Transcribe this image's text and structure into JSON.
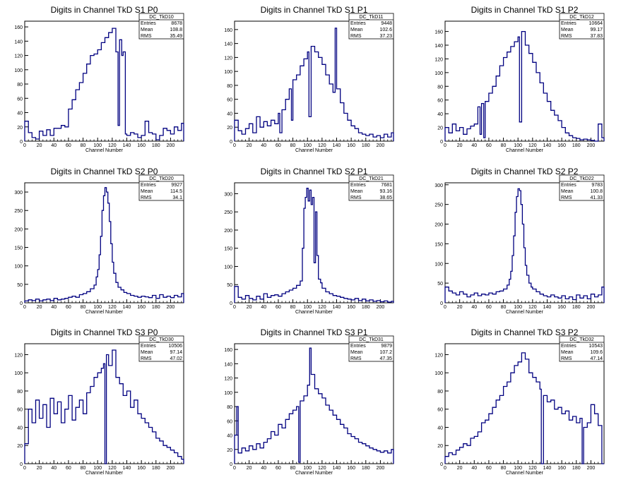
{
  "colors": {
    "line": "#000080",
    "frame": "#000000",
    "text": "#000000"
  },
  "chart_data": [
    {
      "type": "histogram",
      "title": "Digits in Channel TkD S1 P0",
      "xlabel": "Channel Number",
      "ylabel": "",
      "xlim": [
        0,
        218
      ],
      "ylim": [
        0,
        168
      ],
      "yticks": [
        0,
        20,
        40,
        60,
        80,
        100,
        120,
        140,
        160
      ],
      "xticks": [
        0,
        20,
        40,
        60,
        80,
        100,
        120,
        140,
        160,
        180,
        200
      ],
      "stats": {
        "name": "DC_TkD10",
        "entries": "8678",
        "mean": "108.8",
        "rms": "35.49"
      },
      "x": [
        0,
        5,
        10,
        15,
        20,
        25,
        30,
        35,
        40,
        45,
        50,
        55,
        60,
        65,
        70,
        75,
        80,
        85,
        90,
        95,
        100,
        105,
        110,
        115,
        120,
        125,
        128,
        130,
        133,
        135,
        138,
        140,
        145,
        150,
        155,
        160,
        165,
        170,
        175,
        180,
        185,
        190,
        195,
        200,
        205,
        210,
        215
      ],
      "values": [
        28,
        12,
        5,
        3,
        14,
        8,
        16,
        8,
        18,
        18,
        22,
        20,
        45,
        58,
        72,
        82,
        95,
        108,
        120,
        122,
        128,
        138,
        145,
        152,
        158,
        125,
        22,
        142,
        120,
        125,
        10,
        8,
        12,
        10,
        5,
        8,
        28,
        12,
        10,
        2,
        8,
        18,
        15,
        10,
        20,
        15,
        25
      ]
    },
    {
      "type": "histogram",
      "title": "Digits in Channel TkD S1 P1",
      "xlabel": "Channel Number",
      "ylabel": "",
      "xlim": [
        0,
        218
      ],
      "ylim": [
        0,
        172
      ],
      "yticks": [
        0,
        20,
        40,
        60,
        80,
        100,
        120,
        140,
        160
      ],
      "xticks": [
        0,
        20,
        40,
        60,
        80,
        100,
        120,
        140,
        160,
        180,
        200
      ],
      "stats": {
        "name": "DC_TkD11",
        "entries": "9448",
        "mean": "102.6",
        "rms": "37.23"
      },
      "x": [
        0,
        5,
        10,
        15,
        20,
        25,
        30,
        35,
        40,
        45,
        50,
        55,
        60,
        62,
        65,
        70,
        75,
        78,
        80,
        85,
        90,
        95,
        100,
        102,
        105,
        110,
        115,
        120,
        125,
        130,
        135,
        138,
        140,
        145,
        150,
        155,
        160,
        165,
        170,
        175,
        180,
        185,
        190,
        195,
        200,
        205,
        210,
        215
      ],
      "values": [
        30,
        15,
        10,
        18,
        25,
        12,
        35,
        20,
        28,
        22,
        30,
        25,
        40,
        12,
        45,
        60,
        75,
        30,
        88,
        95,
        108,
        118,
        128,
        35,
        136,
        128,
        120,
        110,
        95,
        82,
        70,
        162,
        75,
        55,
        40,
        30,
        22,
        18,
        12,
        10,
        8,
        10,
        6,
        8,
        5,
        10,
        6,
        12
      ]
    },
    {
      "type": "histogram",
      "title": "Digits in Channel TkD S1 P2",
      "xlabel": "Channel Number",
      "ylabel": "",
      "xlim": [
        0,
        218
      ],
      "ylim": [
        0,
        175
      ],
      "yticks": [
        0,
        20,
        40,
        60,
        80,
        100,
        120,
        140,
        160
      ],
      "xticks": [
        0,
        20,
        40,
        60,
        80,
        100,
        120,
        140,
        160,
        180,
        200
      ],
      "stats": {
        "name": "DC_TkD12",
        "entries": "10664",
        "mean": "99.17",
        "rms": "37.83"
      },
      "x": [
        0,
        5,
        10,
        15,
        20,
        25,
        30,
        35,
        40,
        45,
        48,
        50,
        53,
        55,
        60,
        65,
        70,
        75,
        80,
        85,
        90,
        95,
        100,
        102,
        105,
        110,
        115,
        120,
        125,
        130,
        135,
        140,
        145,
        150,
        155,
        160,
        165,
        170,
        175,
        180,
        185,
        190,
        195,
        200,
        205,
        210,
        215
      ],
      "values": [
        20,
        12,
        25,
        15,
        20,
        10,
        18,
        22,
        25,
        50,
        10,
        55,
        5,
        58,
        70,
        80,
        95,
        110,
        122,
        130,
        138,
        145,
        152,
        28,
        160,
        140,
        128,
        115,
        100,
        85,
        70,
        58,
        45,
        38,
        30,
        20,
        12,
        8,
        5,
        4,
        2,
        3,
        2,
        1,
        0,
        25,
        5
      ]
    },
    {
      "type": "histogram",
      "title": "Digits in Channel TkD S2 P0",
      "xlabel": "Channel Number",
      "ylabel": "",
      "xlim": [
        0,
        218
      ],
      "ylim": [
        0,
        325
      ],
      "yticks": [
        0,
        50,
        100,
        150,
        200,
        250,
        300
      ],
      "xticks": [
        0,
        20,
        40,
        60,
        80,
        100,
        120,
        140,
        160,
        180,
        200
      ],
      "stats": {
        "name": "DC_TkD20",
        "entries": "9927",
        "mean": "114.5",
        "rms": "34.1"
      },
      "x": [
        0,
        5,
        10,
        15,
        20,
        25,
        30,
        35,
        40,
        45,
        50,
        55,
        60,
        65,
        70,
        75,
        80,
        85,
        90,
        95,
        98,
        100,
        102,
        104,
        106,
        108,
        110,
        112,
        114,
        116,
        118,
        120,
        122,
        125,
        128,
        132,
        136,
        140,
        145,
        150,
        155,
        160,
        165,
        170,
        175,
        180,
        185,
        190,
        195,
        200,
        205,
        210,
        215
      ],
      "values": [
        5,
        8,
        6,
        10,
        5,
        8,
        10,
        6,
        12,
        8,
        10,
        12,
        15,
        18,
        15,
        22,
        25,
        30,
        38,
        48,
        70,
        90,
        130,
        180,
        250,
        290,
        312,
        300,
        270,
        220,
        160,
        110,
        80,
        55,
        42,
        35,
        28,
        25,
        20,
        18,
        15,
        18,
        16,
        14,
        20,
        12,
        22,
        15,
        18,
        14,
        20,
        16,
        25
      ]
    },
    {
      "type": "histogram",
      "title": "Digits in Channel TkD S2 P1",
      "xlabel": "Channel Number",
      "ylabel": "",
      "xlim": [
        0,
        218
      ],
      "ylim": [
        0,
        330
      ],
      "yticks": [
        0,
        50,
        100,
        150,
        200,
        250,
        300
      ],
      "xticks": [
        0,
        20,
        40,
        60,
        80,
        100,
        120,
        140,
        160,
        180,
        200
      ],
      "stats": {
        "name": "DC_TkD21",
        "entries": "7681",
        "mean": "93.16",
        "rms": "38.65"
      },
      "x": [
        0,
        5,
        10,
        15,
        20,
        25,
        30,
        35,
        40,
        45,
        50,
        55,
        60,
        65,
        70,
        75,
        80,
        85,
        90,
        93,
        95,
        97,
        99,
        101,
        103,
        105,
        107,
        109,
        111,
        113,
        115,
        118,
        120,
        125,
        130,
        135,
        140,
        145,
        150,
        155,
        160,
        165,
        170,
        175,
        180,
        185,
        190,
        195,
        200,
        205,
        210,
        215
      ],
      "values": [
        45,
        15,
        10,
        20,
        12,
        8,
        18,
        10,
        25,
        15,
        20,
        22,
        18,
        25,
        30,
        35,
        40,
        48,
        60,
        150,
        260,
        290,
        315,
        280,
        310,
        270,
        290,
        110,
        250,
        130,
        65,
        55,
        40,
        30,
        25,
        20,
        18,
        15,
        12,
        10,
        8,
        12,
        6,
        10,
        5,
        8,
        4,
        6,
        3,
        5,
        2,
        4
      ]
    },
    {
      "type": "histogram",
      "title": "Digits in Channel TkD S2 P2",
      "xlabel": "Channel Number",
      "ylabel": "",
      "xlim": [
        0,
        218
      ],
      "ylim": [
        0,
        305
      ],
      "yticks": [
        0,
        50,
        100,
        150,
        200,
        250,
        300
      ],
      "xticks": [
        0,
        20,
        40,
        60,
        80,
        100,
        120,
        140,
        160,
        180,
        200
      ],
      "stats": {
        "name": "DC_TkD22",
        "entries": "9783",
        "mean": "100.8",
        "rms": "41.33"
      },
      "x": [
        0,
        5,
        10,
        15,
        20,
        25,
        30,
        35,
        40,
        45,
        50,
        55,
        60,
        65,
        70,
        75,
        80,
        85,
        88,
        90,
        92,
        94,
        96,
        98,
        100,
        102,
        104,
        106,
        108,
        110,
        112,
        115,
        118,
        120,
        125,
        130,
        135,
        140,
        145,
        150,
        155,
        160,
        165,
        170,
        175,
        180,
        185,
        190,
        195,
        200,
        205,
        210,
        215
      ],
      "values": [
        40,
        30,
        25,
        20,
        28,
        22,
        15,
        20,
        25,
        18,
        22,
        20,
        25,
        22,
        28,
        30,
        35,
        45,
        60,
        80,
        120,
        170,
        230,
        270,
        290,
        285,
        250,
        200,
        140,
        95,
        70,
        50,
        40,
        35,
        28,
        22,
        18,
        15,
        20,
        15,
        12,
        18,
        10,
        15,
        8,
        20,
        12,
        18,
        10,
        22,
        15,
        20,
        40
      ]
    },
    {
      "type": "histogram",
      "title": "Digits in Channel TkD S3 P0",
      "xlabel": "Channel Number",
      "ylabel": "",
      "xlim": [
        0,
        218
      ],
      "ylim": [
        0,
        132
      ],
      "yticks": [
        0,
        20,
        40,
        60,
        80,
        100,
        120
      ],
      "xticks": [
        0,
        20,
        40,
        60,
        80,
        100,
        120,
        140,
        160,
        180,
        200
      ],
      "stats": {
        "name": "DC_TkD30",
        "entries": "10506",
        "mean": "97.14",
        "rms": "47.02"
      },
      "x": [
        0,
        5,
        10,
        15,
        20,
        25,
        30,
        35,
        40,
        45,
        50,
        55,
        60,
        65,
        70,
        75,
        80,
        85,
        90,
        95,
        100,
        105,
        108,
        110,
        112,
        115,
        120,
        125,
        130,
        135,
        140,
        145,
        150,
        155,
        160,
        165,
        170,
        175,
        180,
        185,
        190,
        195,
        200,
        205,
        210,
        215
      ],
      "values": [
        22,
        60,
        45,
        70,
        50,
        65,
        40,
        72,
        55,
        68,
        45,
        60,
        75,
        48,
        62,
        70,
        55,
        78,
        85,
        95,
        100,
        105,
        110,
        0,
        120,
        108,
        125,
        95,
        88,
        75,
        80,
        62,
        70,
        55,
        50,
        45,
        40,
        35,
        28,
        25,
        20,
        18,
        15,
        12,
        8,
        5
      ]
    },
    {
      "type": "histogram",
      "title": "Digits in Channel TkD S3 P1",
      "xlabel": "Channel Number",
      "ylabel": "",
      "xlim": [
        0,
        218
      ],
      "ylim": [
        0,
        168
      ],
      "yticks": [
        0,
        20,
        40,
        60,
        80,
        100,
        120,
        140,
        160
      ],
      "xticks": [
        0,
        20,
        40,
        60,
        80,
        100,
        120,
        140,
        160,
        180,
        200
      ],
      "stats": {
        "name": "DC_TkD31",
        "entries": "9879",
        "mean": "107.2",
        "rms": "47.35"
      },
      "x": [
        0,
        3,
        5,
        10,
        15,
        20,
        25,
        30,
        35,
        40,
        45,
        50,
        55,
        60,
        65,
        70,
        75,
        80,
        85,
        88,
        90,
        95,
        100,
        103,
        105,
        110,
        115,
        120,
        125,
        130,
        135,
        140,
        145,
        150,
        155,
        160,
        165,
        170,
        175,
        180,
        185,
        190,
        195,
        200,
        205,
        210,
        215
      ],
      "values": [
        40,
        80,
        15,
        22,
        18,
        25,
        20,
        28,
        22,
        30,
        35,
        45,
        40,
        55,
        50,
        62,
        70,
        75,
        80,
        2,
        88,
        95,
        110,
        162,
        125,
        105,
        98,
        92,
        82,
        75,
        68,
        62,
        55,
        50,
        42,
        38,
        35,
        30,
        28,
        25,
        22,
        20,
        18,
        16,
        18,
        15,
        20
      ]
    },
    {
      "type": "histogram",
      "title": "Digits in Channel TkD S3 P2",
      "xlabel": "Channel Number",
      "ylabel": "",
      "xlim": [
        0,
        218
      ],
      "ylim": [
        0,
        132
      ],
      "yticks": [
        0,
        20,
        40,
        60,
        80,
        100,
        120
      ],
      "xticks": [
        0,
        20,
        40,
        60,
        80,
        100,
        120,
        140,
        160,
        180,
        200
      ],
      "stats": {
        "name": "DC_TkD32",
        "entries": "10543",
        "mean": "109.6",
        "rms": "47.14"
      },
      "x": [
        0,
        5,
        10,
        15,
        20,
        25,
        30,
        35,
        40,
        45,
        50,
        55,
        60,
        65,
        70,
        75,
        80,
        85,
        90,
        95,
        100,
        105,
        110,
        115,
        120,
        125,
        130,
        132,
        135,
        140,
        145,
        150,
        155,
        160,
        165,
        170,
        175,
        180,
        185,
        188,
        190,
        195,
        200,
        205,
        210,
        215
      ],
      "values": [
        8,
        12,
        10,
        15,
        18,
        22,
        20,
        28,
        30,
        35,
        45,
        48,
        55,
        62,
        70,
        75,
        85,
        90,
        100,
        108,
        112,
        122,
        115,
        100,
        95,
        90,
        82,
        0,
        75,
        68,
        70,
        60,
        62,
        55,
        58,
        48,
        52,
        45,
        50,
        0,
        40,
        45,
        65,
        55,
        42,
        0
      ]
    }
  ]
}
